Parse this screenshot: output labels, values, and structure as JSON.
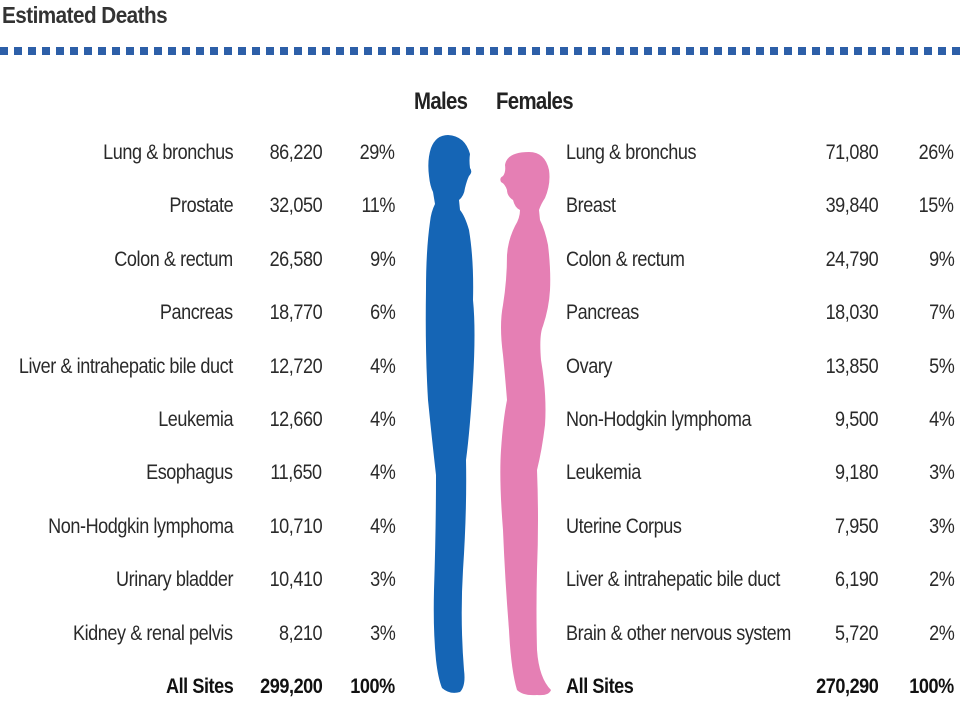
{
  "title": "Estimated Deaths",
  "chart_data": {
    "type": "table",
    "columns": [
      "Males",
      "Females"
    ],
    "males": {
      "header": "Males",
      "color": "#1565b5",
      "rows": [
        {
          "site": "Lung & bronchus",
          "deaths": "86,220",
          "pct": "29%"
        },
        {
          "site": "Prostate",
          "deaths": "32,050",
          "pct": "11%"
        },
        {
          "site": "Colon & rectum",
          "deaths": "26,580",
          "pct": "9%"
        },
        {
          "site": "Pancreas",
          "deaths": "18,770",
          "pct": "6%"
        },
        {
          "site": "Liver & intrahepatic bile duct",
          "deaths": "12,720",
          "pct": "4%"
        },
        {
          "site": "Leukemia",
          "deaths": "12,660",
          "pct": "4%"
        },
        {
          "site": "Esophagus",
          "deaths": "11,650",
          "pct": "4%"
        },
        {
          "site": "Non-Hodgkin lymphoma",
          "deaths": "10,710",
          "pct": "4%"
        },
        {
          "site": "Urinary bladder",
          "deaths": "10,410",
          "pct": "3%"
        },
        {
          "site": "Kidney & renal pelvis",
          "deaths": "8,210",
          "pct": "3%"
        }
      ],
      "total": {
        "site": "All Sites",
        "deaths": "299,200",
        "pct": "100%"
      }
    },
    "females": {
      "header": "Females",
      "color": "#e57fb4",
      "rows": [
        {
          "site": "Lung & bronchus",
          "deaths": "71,080",
          "pct": "26%"
        },
        {
          "site": "Breast",
          "deaths": "39,840",
          "pct": "15%"
        },
        {
          "site": "Colon & rectum",
          "deaths": "24,790",
          "pct": "9%"
        },
        {
          "site": "Pancreas",
          "deaths": "18,030",
          "pct": "7%"
        },
        {
          "site": "Ovary",
          "deaths": "13,850",
          "pct": "5%"
        },
        {
          "site": "Non-Hodgkin lymphoma",
          "deaths": "9,500",
          "pct": "4%"
        },
        {
          "site": "Leukemia",
          "deaths": "9,180",
          "pct": "3%"
        },
        {
          "site": "Uterine Corpus",
          "deaths": "7,950",
          "pct": "3%"
        },
        {
          "site": "Liver & intrahepatic bile duct",
          "deaths": "6,190",
          "pct": "2%"
        },
        {
          "site": "Brain & other nervous system",
          "deaths": "5,720",
          "pct": "2%"
        }
      ],
      "total": {
        "site": "All Sites",
        "deaths": "270,290",
        "pct": "100%"
      }
    }
  }
}
